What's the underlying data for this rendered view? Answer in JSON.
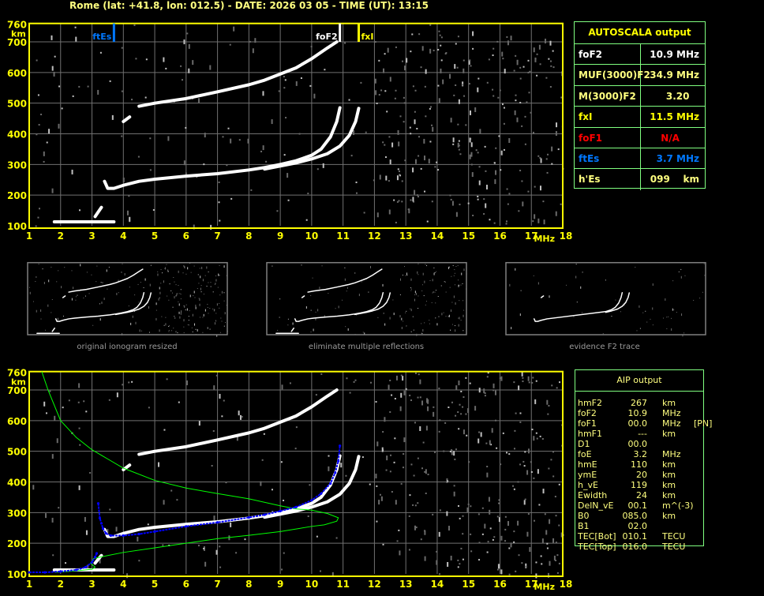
{
  "header": {
    "title": "Rome (lat: +41.8, lon: 012.5) - DATE: 2026 03 05 - TIME (UT): 13:15"
  },
  "colors": {
    "axis": "#ffff00",
    "grid": "#707070",
    "trace": "#ffffff",
    "profile": "#00ff00",
    "fit": "#0000ff",
    "ftEs": "#0078ff",
    "foF2": "#ffffff",
    "fxI": "#ffff00",
    "table_border": "#80ff80",
    "na": "#ff0000"
  },
  "autoscala": {
    "title": "AUTOSCALA output",
    "rows": [
      {
        "key": "foF2",
        "value": "10.9 MHz",
        "color": "#ffffff"
      },
      {
        "key": "MUF(3000)F2",
        "value": "34.9 MHz",
        "color": "#ffff80"
      },
      {
        "key": "M(3000)F2",
        "value": "3.20   ",
        "color": "#ffff80"
      },
      {
        "key": "fxI",
        "value": "11.5 MHz",
        "color": "#ffff00"
      },
      {
        "key": "foF1",
        "value": "N/A      ",
        "color": "#ff0000"
      },
      {
        "key": "ftEs",
        "value": "3.7 MHz",
        "color": "#0078ff"
      },
      {
        "key": "h'Es",
        "value": "099    km",
        "color": "#ffff80"
      }
    ]
  },
  "aip": {
    "title": "AIP output",
    "rows": [
      {
        "name": "hmF2",
        "value": "267",
        "unit": "km",
        "extra": ""
      },
      {
        "name": "foF2",
        "value": "10.9",
        "unit": "MHz",
        "extra": ""
      },
      {
        "name": "foF1",
        "value": "00.0",
        "unit": "MHz",
        "extra": "[PN]"
      },
      {
        "name": "hmF1",
        "value": "---",
        "unit": "km",
        "extra": ""
      },
      {
        "name": "D1",
        "value": "00.0",
        "unit": "",
        "extra": ""
      },
      {
        "name": "foE",
        "value": "3.2",
        "unit": "MHz",
        "extra": ""
      },
      {
        "name": "hmE",
        "value": "110",
        "unit": "km",
        "extra": ""
      },
      {
        "name": "ymE",
        "value": "20",
        "unit": "km",
        "extra": ""
      },
      {
        "name": "h_vE",
        "value": "119",
        "unit": "km",
        "extra": ""
      },
      {
        "name": "Ewidth",
        "value": "24",
        "unit": "km",
        "extra": ""
      },
      {
        "name": "DelN_vE",
        "value": "00.1",
        "unit": "m^(-3)",
        "extra": ""
      },
      {
        "name": "B0",
        "value": "085.0",
        "unit": "km",
        "extra": ""
      },
      {
        "name": "B1",
        "value": "02.0",
        "unit": "",
        "extra": ""
      },
      {
        "name": "TEC[Bot]",
        "value": "010.1",
        "unit": "TECU",
        "extra": ""
      },
      {
        "name": "TEC[Top]",
        "value": "016.0",
        "unit": "TECU",
        "extra": ""
      }
    ]
  },
  "thumbnails": [
    {
      "caption": "original ionogram resized"
    },
    {
      "caption": "eliminate multiple reflections"
    },
    {
      "caption": "evidence F2 trace"
    }
  ],
  "chart_data": [
    {
      "type": "scatter",
      "title": "",
      "xlabel": "MHz",
      "ylabel": "km",
      "xlim": [
        1,
        18
      ],
      "ylim": [
        100,
        760
      ],
      "xticks": [
        "1",
        "2",
        "3",
        "4",
        "5",
        "6",
        "7",
        "8",
        "9",
        "10",
        "11",
        "12",
        "13",
        "14",
        "15",
        "16",
        "17",
        "18"
      ],
      "yticks": [
        "100",
        "200",
        "300",
        "400",
        "500",
        "600",
        "700",
        "760"
      ],
      "grid": true,
      "series": [
        {
          "kind": "echo-trace",
          "points": [
            [
              3.4,
              245
            ],
            [
              3.5,
              222
            ],
            [
              3.7,
              222
            ],
            [
              4,
              232
            ],
            [
              4.5,
              245
            ],
            [
              5,
              252
            ],
            [
              6,
              262
            ],
            [
              7,
              270
            ],
            [
              8,
              282
            ],
            [
              8.5,
              290
            ],
            [
              9,
              300
            ],
            [
              9.5,
              312
            ],
            [
              10,
              330
            ],
            [
              10.3,
              350
            ],
            [
              10.6,
              390
            ],
            [
              10.8,
              440
            ],
            [
              10.9,
              485
            ]
          ]
        },
        {
          "kind": "echo-trace",
          "points": [
            [
              8.5,
              285
            ],
            [
              9,
              295
            ],
            [
              9.5,
              305
            ],
            [
              10,
              318
            ],
            [
              10.5,
              335
            ],
            [
              10.9,
              360
            ],
            [
              11.2,
              395
            ],
            [
              11.4,
              440
            ],
            [
              11.5,
              483
            ]
          ]
        },
        {
          "kind": "echo-trace",
          "points": [
            [
              4.0,
              440
            ],
            [
              4.2,
              455
            ]
          ]
        },
        {
          "kind": "echo-trace",
          "points": [
            [
              4.5,
              490
            ],
            [
              5,
              500
            ],
            [
              6,
              515
            ],
            [
              7,
              537
            ],
            [
              8,
              560
            ],
            [
              8.5,
              575
            ],
            [
              9,
              595
            ],
            [
              9.5,
              615
            ],
            [
              10,
              645
            ],
            [
              10.5,
              680
            ],
            [
              10.8,
              700
            ]
          ]
        },
        {
          "kind": "echo-trace",
          "points": [
            [
              1.8,
              113
            ],
            [
              2.5,
              113
            ],
            [
              3.1,
              113
            ],
            [
              3.7,
              113
            ]
          ]
        },
        {
          "kind": "echo-trace",
          "points": [
            [
              3.1,
              130
            ],
            [
              3.2,
              145
            ],
            [
              3.3,
              160
            ]
          ]
        }
      ],
      "markers": [
        {
          "label": "ftEs",
          "freq": 3.7,
          "color": "#0078ff"
        },
        {
          "label": "foF2",
          "freq": 10.9,
          "color": "#ffffff"
        },
        {
          "label": "fxI",
          "freq": 11.5,
          "color": "#ffff00"
        }
      ]
    },
    {
      "type": "line",
      "title": "",
      "xlabel": "MHz",
      "ylabel": "km",
      "xlim": [
        1,
        18
      ],
      "ylim": [
        100,
        760
      ],
      "xticks": [
        "1",
        "2",
        "3",
        "4",
        "5",
        "6",
        "7",
        "8",
        "9",
        "10",
        "11",
        "12",
        "13",
        "14",
        "15",
        "16",
        "17",
        "18"
      ],
      "yticks": [
        "100",
        "200",
        "300",
        "400",
        "500",
        "600",
        "700",
        "760"
      ],
      "grid": true,
      "series": [
        {
          "kind": "echo-trace",
          "points": [
            [
              3.4,
              245
            ],
            [
              3.5,
              222
            ],
            [
              3.7,
              222
            ],
            [
              4,
              232
            ],
            [
              4.5,
              245
            ],
            [
              5,
              252
            ],
            [
              6,
              262
            ],
            [
              7,
              270
            ],
            [
              8,
              282
            ],
            [
              8.5,
              290
            ],
            [
              9,
              300
            ],
            [
              9.5,
              312
            ],
            [
              10,
              330
            ],
            [
              10.3,
              350
            ],
            [
              10.6,
              390
            ],
            [
              10.8,
              440
            ],
            [
              10.9,
              485
            ]
          ]
        },
        {
          "kind": "echo-trace",
          "points": [
            [
              8.5,
              285
            ],
            [
              9,
              295
            ],
            [
              9.5,
              305
            ],
            [
              10,
              318
            ],
            [
              10.5,
              335
            ],
            [
              10.9,
              360
            ],
            [
              11.2,
              395
            ],
            [
              11.4,
              440
            ],
            [
              11.5,
              483
            ]
          ]
        },
        {
          "kind": "echo-trace",
          "points": [
            [
              4.0,
              440
            ],
            [
              4.2,
              455
            ]
          ]
        },
        {
          "kind": "echo-trace",
          "points": [
            [
              4.5,
              490
            ],
            [
              5,
              500
            ],
            [
              6,
              515
            ],
            [
              7,
              537
            ],
            [
              8,
              560
            ],
            [
              8.5,
              575
            ],
            [
              9,
              595
            ],
            [
              9.5,
              615
            ],
            [
              10,
              645
            ],
            [
              10.5,
              680
            ],
            [
              10.8,
              700
            ]
          ]
        },
        {
          "kind": "echo-trace",
          "points": [
            [
              1.8,
              113
            ],
            [
              2.5,
              113
            ],
            [
              3.1,
              113
            ],
            [
              3.7,
              113
            ]
          ]
        },
        {
          "kind": "echo-trace",
          "points": [
            [
              3.1,
              135
            ],
            [
              3.2,
              148
            ],
            [
              3.3,
              160
            ]
          ]
        },
        {
          "kind": "profile",
          "points": [
            [
              1.4,
              760
            ],
            [
              1.6,
              700
            ],
            [
              2,
              600
            ],
            [
              2.5,
              545
            ],
            [
              3,
              505
            ],
            [
              3.5,
              475
            ],
            [
              4,
              445
            ],
            [
              5,
              405
            ],
            [
              6,
              380
            ],
            [
              7,
              362
            ],
            [
              8,
              345
            ],
            [
              9,
              322
            ],
            [
              9.5,
              312
            ],
            [
              10,
              308
            ],
            [
              10.5,
              297
            ],
            [
              10.85,
              283
            ],
            [
              10.8,
              272
            ],
            [
              10.4,
              260
            ],
            [
              10,
              255
            ],
            [
              9,
              238
            ],
            [
              8,
              226
            ],
            [
              7,
              215
            ],
            [
              6,
              200
            ],
            [
              5,
              185
            ],
            [
              4,
              170
            ],
            [
              3.5,
              160
            ],
            [
              3.05,
              150
            ],
            [
              2.95,
              135
            ],
            [
              3.1,
              122
            ],
            [
              3.0,
              115
            ],
            [
              2.5,
              110
            ],
            [
              2,
              106
            ],
            [
              1.8,
              105
            ]
          ]
        },
        {
          "kind": "fit",
          "points": [
            [
              1,
              105
            ],
            [
              1.5,
              105
            ],
            [
              2,
              108
            ],
            [
              2.5,
              113
            ],
            [
              2.8,
              122
            ],
            [
              3.0,
              138
            ],
            [
              3.1,
              155
            ],
            [
              3.15,
              167
            ]
          ]
        },
        {
          "kind": "fit",
          "points": [
            [
              3.2,
              330
            ],
            [
              3.25,
              282
            ],
            [
              3.3,
              265
            ],
            [
              3.35,
              248
            ],
            [
              3.45,
              232
            ],
            [
              3.6,
              225
            ],
            [
              4,
              225
            ],
            [
              4.5,
              230
            ],
            [
              5,
              238
            ],
            [
              6,
              255
            ],
            [
              7,
              268
            ],
            [
              8,
              284
            ],
            [
              8.5,
              293
            ],
            [
              9,
              305
            ],
            [
              9.5,
              318
            ],
            [
              10,
              340
            ],
            [
              10.3,
              362
            ],
            [
              10.6,
              395
            ],
            [
              10.75,
              430
            ],
            [
              10.85,
              468
            ],
            [
              10.9,
              518
            ]
          ]
        }
      ]
    }
  ]
}
